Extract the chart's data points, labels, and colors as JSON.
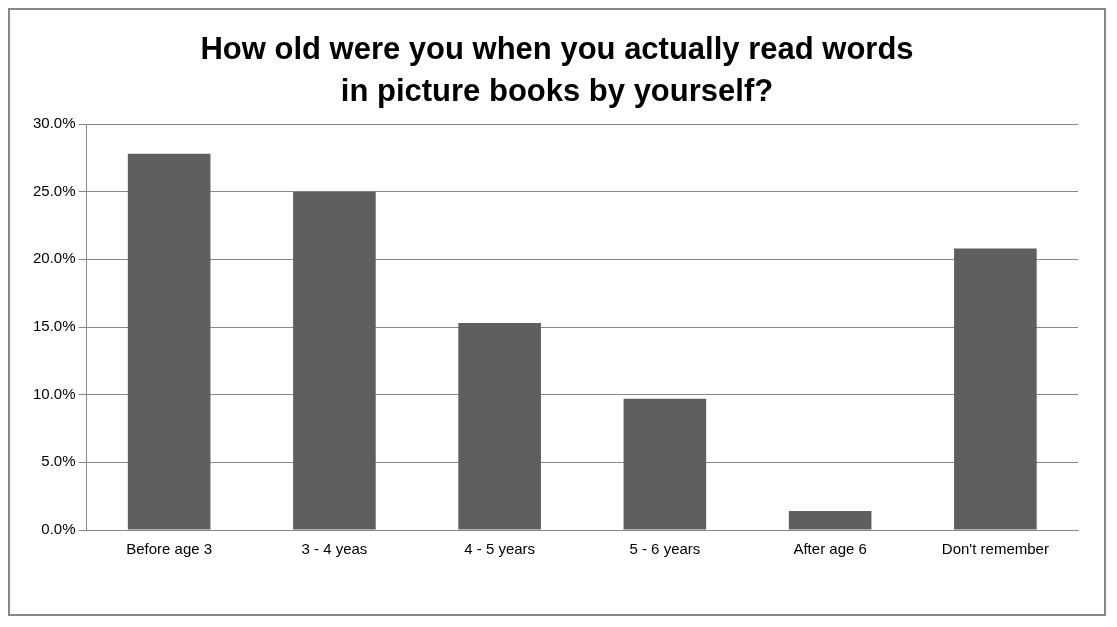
{
  "chart_data": {
    "type": "bar",
    "title": "How old were you when you actually read words\nin picture books by yourself?",
    "categories": [
      "Before age 3",
      "3 - 4 yeas",
      "4 - 5 years",
      "5 - 6 years",
      "After age 6",
      "Don't remember"
    ],
    "values": [
      27.8,
      25.0,
      15.3,
      9.7,
      1.4,
      20.8
    ],
    "color": "#5f5f5f",
    "ylim": [
      0,
      30
    ],
    "yticks": [
      {
        "value": 0,
        "label": "0.0%"
      },
      {
        "value": 5,
        "label": "5.0%"
      },
      {
        "value": 10,
        "label": "10.0%"
      },
      {
        "value": 15,
        "label": "15.0%"
      },
      {
        "value": 20,
        "label": "20.0%"
      },
      {
        "value": 25,
        "label": "25.0%"
      },
      {
        "value": 30,
        "label": "30.0%"
      }
    ],
    "grid": "y"
  }
}
